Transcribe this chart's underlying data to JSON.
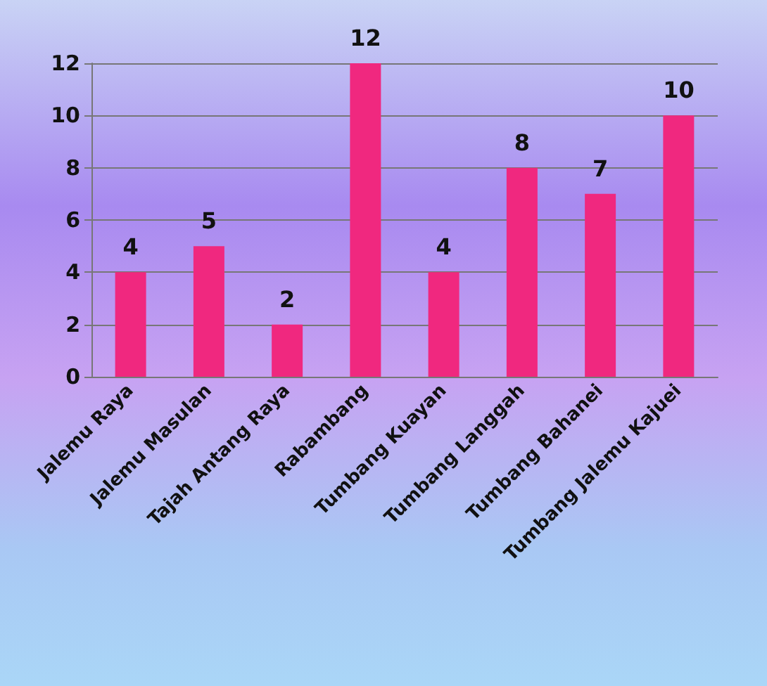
{
  "chart_data": {
    "type": "bar",
    "categories": [
      "Jalemu Raya",
      "Jalemu Masulan",
      "Tajah Antang Raya",
      "Rabambang",
      "Tumbang Kuayan",
      "Tumbang Langgah",
      "Tumbang Bahanei",
      "Tumbang Jalemu Kajuei"
    ],
    "values": [
      4,
      5,
      2,
      12,
      4,
      8,
      7,
      10
    ],
    "color": "#f0287f",
    "ylim": [
      0,
      12
    ],
    "yticks": [
      0,
      2,
      4,
      6,
      8,
      10,
      12
    ],
    "grid": "y",
    "data_labels": true
  }
}
